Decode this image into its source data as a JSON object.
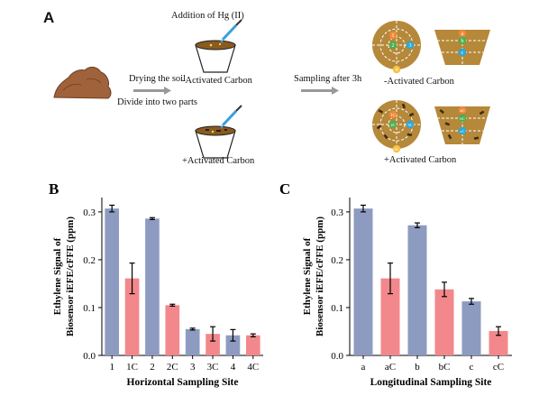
{
  "panel_a": {
    "letter": "A",
    "drying": "Drying the soil",
    "divide": "Divide into two parts",
    "addition": "Addition of Hg (II)",
    "minus_ac": "-Activated Carbon",
    "plus_ac": "+Activated Carbon",
    "sampling": "Sampling after 3h",
    "result_minus": "-Activated Carbon",
    "result_plus": "+Activated Carbon",
    "circle_sites_minus": [
      "1",
      "2",
      "3",
      "4"
    ],
    "circle_sites_plus": [
      "1C",
      "2C",
      "3C",
      "4C"
    ],
    "cup_sites_minus": [
      "a",
      "b",
      "c"
    ],
    "cup_sites_plus": [
      "aC",
      "bC",
      "cC"
    ]
  },
  "chart_data": [
    {
      "type": "bar",
      "panel": "B",
      "xlabel": "Horizontal Sampling Site",
      "ylabel_line1": "Ethylene Signal of",
      "ylabel_line2": "Biosensor iEFE/cFFE (ppm)",
      "ylim": [
        0,
        0.33
      ],
      "yticks": [
        "0.0",
        "0.1",
        "0.2",
        "0.3"
      ],
      "categories": [
        "1",
        "1C",
        "2",
        "2C",
        "3",
        "3C",
        "4",
        "4C"
      ],
      "values": [
        0.307,
        0.161,
        0.286,
        0.105,
        0.055,
        0.045,
        0.042,
        0.042
      ],
      "errors": [
        0.007,
        0.032,
        0.002,
        0.002,
        0.002,
        0.015,
        0.012,
        0.003
      ],
      "colors": [
        "#8e9bc1",
        "#f2888b",
        "#8e9bc1",
        "#f2888b",
        "#8e9bc1",
        "#f2888b",
        "#8e9bc1",
        "#f2888b"
      ]
    },
    {
      "type": "bar",
      "panel": "C",
      "xlabel": "Longitudinal Sampling Site",
      "ylabel_line1": "Ethylene Signal of",
      "ylabel_line2": "Biosensor iEFE/cFFE (ppm)",
      "ylim": [
        0,
        0.33
      ],
      "yticks": [
        "0.0",
        "0.1",
        "0.2",
        "0.3"
      ],
      "categories": [
        "a",
        "aC",
        "b",
        "bC",
        "c",
        "cC"
      ],
      "values": [
        0.307,
        0.161,
        0.272,
        0.138,
        0.113,
        0.051
      ],
      "errors": [
        0.007,
        0.032,
        0.005,
        0.015,
        0.006,
        0.009
      ],
      "colors": [
        "#8e9bc1",
        "#f2888b",
        "#8e9bc1",
        "#f2888b",
        "#8e9bc1",
        "#f2888b"
      ]
    }
  ]
}
